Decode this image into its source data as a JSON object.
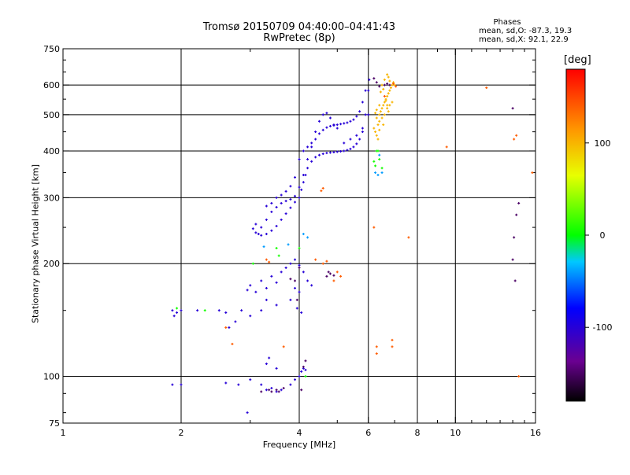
{
  "chart_data": {
    "type": "scatter",
    "title": "Tromsø 20150709 04:40:00–04:41:43",
    "subtitle": "RwPretec (8p)",
    "xlabel": "Frequency [MHz]",
    "ylabel": "Stationary phase Virtual Height [km]",
    "x_scale": "log",
    "y_scale": "log",
    "xlim": [
      1,
      16
    ],
    "ylim": [
      75,
      750
    ],
    "x_ticks": [
      1,
      2,
      4,
      6,
      8,
      10,
      16
    ],
    "y_ticks": [
      75,
      100,
      200,
      300,
      400,
      500,
      600,
      750
    ],
    "grid": true,
    "colorbar": {
      "label": "[deg]",
      "range": [
        -180,
        180
      ],
      "ticks": [
        100,
        0,
        -100
      ]
    },
    "stats": {
      "heading": "Phases",
      "o_line": "mean, sd,O: -87.3, 19.3",
      "x_line": "mean, sd,X:  92.1, 22.9"
    },
    "series": [
      {
        "points": [
          [
            3.05,
            248
          ],
          [
            3.1,
            242
          ],
          [
            3.15,
            240
          ],
          [
            3.2,
            238
          ],
          [
            3.3,
            240
          ],
          [
            3.4,
            245
          ],
          [
            3.5,
            252
          ],
          [
            3.6,
            262
          ],
          [
            3.7,
            272
          ],
          [
            3.8,
            282
          ],
          [
            3.9,
            292
          ],
          [
            4.0,
            300
          ],
          [
            4.05,
            315
          ],
          [
            4.1,
            330
          ],
          [
            4.15,
            345
          ],
          [
            4.2,
            360
          ],
          [
            4.3,
            375
          ],
          [
            4.4,
            385
          ],
          [
            4.5,
            390
          ],
          [
            4.6,
            393
          ],
          [
            4.7,
            395
          ],
          [
            4.8,
            396
          ],
          [
            4.9,
            397
          ],
          [
            5.0,
            398
          ],
          [
            5.1,
            399
          ],
          [
            5.2,
            400
          ],
          [
            5.3,
            402
          ],
          [
            5.4,
            405
          ],
          [
            5.5,
            410
          ],
          [
            5.6,
            418
          ],
          [
            5.7,
            430
          ],
          [
            5.8,
            450
          ],
          [
            5.9,
            500
          ],
          [
            6.0,
            580
          ],
          [
            6.03,
            620
          ],
          [
            3.1,
            255
          ],
          [
            3.2,
            250
          ],
          [
            3.3,
            262
          ],
          [
            3.4,
            275
          ],
          [
            3.5,
            283
          ],
          [
            3.6,
            290
          ],
          [
            3.7,
            294
          ],
          [
            3.8,
            297
          ],
          [
            3.9,
            303
          ],
          [
            4.0,
            320
          ],
          [
            4.1,
            345
          ],
          [
            4.2,
            380
          ],
          [
            4.3,
            410
          ],
          [
            4.4,
            430
          ],
          [
            4.5,
            445
          ],
          [
            4.6,
            455
          ],
          [
            4.7,
            462
          ],
          [
            4.8,
            466
          ],
          [
            4.9,
            468
          ],
          [
            5.0,
            470
          ],
          [
            5.1,
            472
          ],
          [
            5.2,
            474
          ],
          [
            5.3,
            476
          ],
          [
            5.4,
            480
          ],
          [
            5.5,
            485
          ],
          [
            5.6,
            495
          ],
          [
            5.7,
            510
          ],
          [
            5.8,
            540
          ],
          [
            5.9,
            580
          ],
          [
            3.3,
            285
          ],
          [
            3.4,
            290
          ],
          [
            3.5,
            300
          ],
          [
            3.6,
            305
          ],
          [
            3.7,
            312
          ],
          [
            3.8,
            322
          ],
          [
            3.9,
            340
          ],
          [
            4.0,
            380
          ],
          [
            4.1,
            400
          ],
          [
            4.2,
            410
          ],
          [
            4.3,
            420
          ],
          [
            4.4,
            450
          ],
          [
            4.5,
            480
          ],
          [
            4.6,
            500
          ],
          [
            4.7,
            505
          ],
          [
            4.8,
            490
          ],
          [
            4.9,
            470
          ],
          [
            5.0,
            460
          ],
          [
            5.2,
            420
          ],
          [
            5.4,
            430
          ],
          [
            5.6,
            440
          ],
          [
            5.8,
            460
          ],
          [
            6.0,
            500
          ],
          [
            2.95,
            170
          ],
          [
            3.0,
            175
          ],
          [
            3.1,
            168
          ],
          [
            3.2,
            180
          ],
          [
            3.3,
            172
          ],
          [
            3.4,
            185
          ],
          [
            3.5,
            178
          ],
          [
            3.6,
            190
          ],
          [
            3.7,
            195
          ],
          [
            3.8,
            200
          ],
          [
            3.9,
            205
          ],
          [
            4.0,
            198
          ],
          [
            4.1,
            190
          ],
          [
            4.2,
            180
          ],
          [
            4.3,
            175
          ],
          [
            3.9,
            172
          ],
          [
            4.0,
            168
          ],
          [
            3.8,
            160
          ],
          [
            3.95,
            152
          ],
          [
            4.05,
            148
          ],
          [
            3.5,
            155
          ],
          [
            3.3,
            160
          ],
          [
            3.2,
            150
          ],
          [
            3.0,
            145
          ],
          [
            2.85,
            150
          ],
          [
            2.75,
            140
          ],
          [
            2.65,
            135
          ],
          [
            1.9,
            150
          ],
          [
            1.95,
            148
          ],
          [
            2.0,
            150
          ],
          [
            1.92,
            145
          ],
          [
            2.2,
            150
          ],
          [
            2.5,
            150
          ],
          [
            2.6,
            148
          ],
          [
            1.9,
            95
          ],
          [
            2.0,
            95
          ],
          [
            2.6,
            96
          ],
          [
            2.8,
            95
          ],
          [
            3.0,
            98
          ],
          [
            3.2,
            95
          ],
          [
            3.3,
            92
          ],
          [
            3.4,
            93
          ],
          [
            3.5,
            91
          ],
          [
            3.6,
            92
          ],
          [
            3.8,
            95
          ],
          [
            3.9,
            98
          ],
          [
            4.0,
            100
          ],
          [
            4.05,
            103
          ],
          [
            4.1,
            105
          ],
          [
            4.15,
            104
          ],
          [
            3.3,
            108
          ],
          [
            3.35,
            112
          ],
          [
            3.5,
            105
          ],
          [
            2.95,
            80
          ]
        ],
        "color_value": -100
      },
      {
        "points": [
          [
            3.35,
            92
          ],
          [
            3.4,
            91
          ],
          [
            3.5,
            92
          ],
          [
            3.55,
            91
          ],
          [
            3.65,
            93
          ],
          [
            4.7,
            185
          ],
          [
            4.8,
            188
          ],
          [
            4.9,
            186
          ],
          [
            3.9,
            180
          ],
          [
            3.8,
            182
          ],
          [
            4.0,
            195
          ],
          [
            3.95,
            160
          ],
          [
            4.15,
            110
          ],
          [
            4.1,
            106
          ],
          [
            3.2,
            91
          ],
          [
            4.05,
            92
          ],
          [
            4.75,
            190
          ],
          [
            6.2,
            625
          ],
          [
            6.3,
            610
          ],
          [
            6.4,
            595
          ],
          [
            6.6,
            600
          ],
          [
            6.7,
            605
          ],
          [
            6.8,
            600
          ],
          [
            14.0,
            520
          ],
          [
            14.3,
            270
          ],
          [
            14.0,
            205
          ],
          [
            14.2,
            180
          ],
          [
            14.5,
            290
          ],
          [
            14.1,
            235
          ]
        ],
        "color_value": -150
      },
      {
        "points": [
          [
            6.3,
            490
          ],
          [
            6.4,
            500
          ],
          [
            6.45,
            510
          ],
          [
            6.5,
            520
          ],
          [
            6.55,
            530
          ],
          [
            6.6,
            540
          ],
          [
            6.65,
            550
          ],
          [
            6.7,
            560
          ],
          [
            6.75,
            570
          ],
          [
            6.8,
            580
          ],
          [
            6.85,
            590
          ],
          [
            6.9,
            600
          ],
          [
            6.95,
            610
          ],
          [
            7.0,
            600
          ],
          [
            6.35,
            470
          ],
          [
            6.4,
            480
          ],
          [
            6.5,
            490
          ],
          [
            6.6,
            500
          ],
          [
            6.2,
            460
          ],
          [
            6.25,
            450
          ],
          [
            6.4,
            455
          ],
          [
            6.55,
            470
          ],
          [
            6.7,
            520
          ],
          [
            6.8,
            530
          ],
          [
            6.9,
            540
          ],
          [
            6.3,
            440
          ],
          [
            6.35,
            430
          ],
          [
            6.5,
            600
          ],
          [
            6.6,
            620
          ],
          [
            6.7,
            640
          ],
          [
            6.75,
            630
          ],
          [
            6.8,
            615
          ],
          [
            6.45,
            575
          ],
          [
            6.55,
            585
          ],
          [
            6.65,
            545
          ],
          [
            6.7,
            530
          ],
          [
            6.75,
            510
          ],
          [
            6.4,
            530
          ],
          [
            6.3,
            515
          ],
          [
            6.25,
            505
          ]
        ],
        "color_value": 100
      },
      {
        "points": [
          [
            6.2,
            250
          ],
          [
            7.6,
            235
          ],
          [
            9.5,
            410
          ],
          [
            12.0,
            590
          ],
          [
            14.5,
            100
          ],
          [
            15.7,
            350
          ],
          [
            14.3,
            440
          ],
          [
            14.1,
            430
          ],
          [
            5.0,
            190
          ],
          [
            5.1,
            185
          ],
          [
            4.9,
            180
          ],
          [
            6.3,
            120
          ],
          [
            6.3,
            115
          ],
          [
            6.9,
            120
          ],
          [
            6.9,
            125
          ],
          [
            3.65,
            120
          ],
          [
            3.3,
            205
          ],
          [
            3.35,
            202
          ],
          [
            4.6,
            200
          ],
          [
            4.7,
            203
          ],
          [
            4.4,
            205
          ],
          [
            4.55,
            313
          ],
          [
            4.6,
            318
          ],
          [
            6.6,
            560
          ],
          [
            6.95,
            605
          ],
          [
            7.05,
            595
          ],
          [
            2.7,
            122
          ],
          [
            2.6,
            135
          ]
        ],
        "color_value": 140
      },
      {
        "points": [
          [
            6.3,
            400
          ],
          [
            6.4,
            380
          ],
          [
            6.2,
            375
          ],
          [
            6.5,
            360
          ],
          [
            6.25,
            365
          ],
          [
            4.0,
            220
          ],
          [
            6.35,
            400
          ],
          [
            3.05,
            200
          ],
          [
            2.3,
            150
          ],
          [
            1.95,
            152
          ],
          [
            4.15,
            100
          ],
          [
            3.5,
            220
          ],
          [
            3.55,
            210
          ]
        ],
        "color_value": 5
      },
      {
        "points": [
          [
            6.35,
            345
          ],
          [
            6.25,
            350
          ],
          [
            6.5,
            350
          ],
          [
            3.25,
            222
          ],
          [
            3.75,
            225
          ],
          [
            6.4,
            390
          ],
          [
            4.1,
            240
          ],
          [
            4.2,
            235
          ]
        ],
        "color_value": -40
      }
    ]
  }
}
